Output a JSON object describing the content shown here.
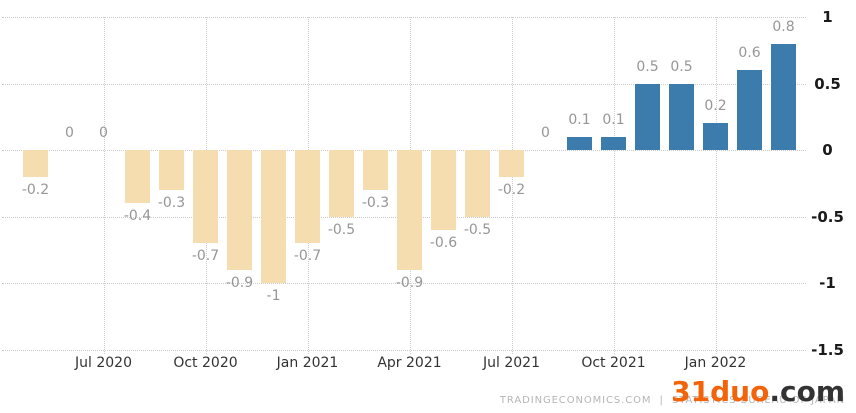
{
  "chart_data": {
    "type": "bar",
    "title": "",
    "values": [
      -0.2,
      0,
      0,
      -0.4,
      -0.3,
      -0.7,
      -0.9,
      -1,
      -0.7,
      -0.5,
      -0.3,
      -0.9,
      -0.6,
      -0.5,
      -0.2,
      0,
      0.1,
      0.1,
      0.5,
      0.5,
      0.2,
      0.6,
      0.8
    ],
    "point_labels": [
      "-0.2",
      "0",
      "0",
      "-0.4",
      "-0.3",
      "-0.7",
      "-0.9",
      "-1",
      "-0.7",
      "-0.5",
      "-0.3",
      "-0.9",
      "-0.6",
      "-0.5",
      "-0.2",
      "0",
      "0.1",
      "0.1",
      "0.5",
      "0.5",
      "0.2",
      "0.6",
      "0.8"
    ],
    "x_tick_labels": [
      "Jul 2020",
      "Oct 2020",
      "Jan 2021",
      "Apr 2021",
      "Jul 2021",
      "Oct 2021",
      "Jan 2022"
    ],
    "x_tick_indices": [
      2,
      5,
      8,
      11,
      14,
      17,
      20
    ],
    "y_ticks": [
      1,
      0.5,
      0,
      -0.5,
      -1,
      -1.5
    ],
    "y_tick_labels": [
      "1",
      "0.5",
      "0",
      "-0.5",
      "-1",
      "-1.5"
    ],
    "ylim": [
      -1.5,
      1
    ],
    "xlabel": "",
    "ylabel": "",
    "grid": "dotted",
    "legend": "none",
    "colors": {
      "positive_bar": "#3c7cac",
      "negative_bar": "#f5ddaf",
      "value_label": "#969696",
      "x_tick_label": "#333333",
      "y_tick_label": "#1a1a1a",
      "gridline": "#cccccc"
    }
  },
  "footer": {
    "attribution": "TRADINGECONOMICS.COM  |  STATISTICS BUREAU OF JAPAN",
    "attribution_color": "#b5b5b5",
    "watermark": {
      "brand": "31duo",
      "suffix": ".com",
      "brand_color": "#f3640a",
      "suffix_color": "#333333"
    }
  }
}
